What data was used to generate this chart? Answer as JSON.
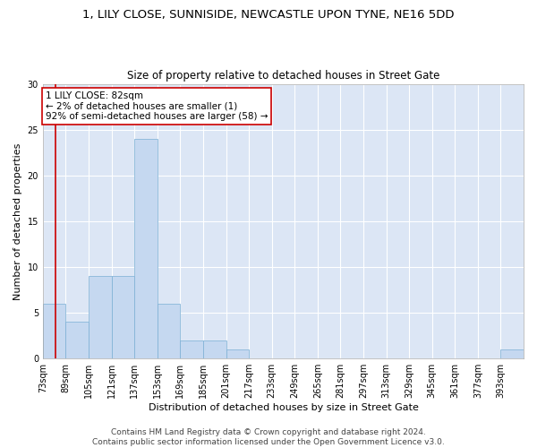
{
  "title": "1, LILY CLOSE, SUNNISIDE, NEWCASTLE UPON TYNE, NE16 5DD",
  "subtitle": "Size of property relative to detached houses in Street Gate",
  "xlabel": "Distribution of detached houses by size in Street Gate",
  "ylabel": "Number of detached properties",
  "bin_labels": [
    "73sqm",
    "89sqm",
    "105sqm",
    "121sqm",
    "137sqm",
    "153sqm",
    "169sqm",
    "185sqm",
    "201sqm",
    "217sqm",
    "233sqm",
    "249sqm",
    "265sqm",
    "281sqm",
    "297sqm",
    "313sqm",
    "329sqm",
    "345sqm",
    "361sqm",
    "377sqm",
    "393sqm"
  ],
  "bin_values": [
    6,
    4,
    9,
    9,
    24,
    6,
    2,
    2,
    1,
    0,
    0,
    0,
    0,
    0,
    0,
    0,
    0,
    0,
    0,
    0,
    1
  ],
  "bin_width": 16,
  "bin_starts": [
    73,
    89,
    105,
    121,
    137,
    153,
    169,
    185,
    201,
    217,
    233,
    249,
    265,
    281,
    297,
    313,
    329,
    345,
    361,
    377,
    393
  ],
  "bar_color": "#c5d8f0",
  "bar_edge_color": "#7bafd4",
  "property_value": 82,
  "property_line_color": "#cc0000",
  "annotation_text": "1 LILY CLOSE: 82sqm\n← 2% of detached houses are smaller (1)\n92% of semi-detached houses are larger (58) →",
  "annotation_box_color": "white",
  "annotation_box_edge_color": "#cc0000",
  "ylim": [
    0,
    30
  ],
  "yticks": [
    0,
    5,
    10,
    15,
    20,
    25,
    30
  ],
  "background_color": "#dce6f5",
  "grid_color": "white",
  "footer_line1": "Contains HM Land Registry data © Crown copyright and database right 2024.",
  "footer_line2": "Contains public sector information licensed under the Open Government Licence v3.0.",
  "title_fontsize": 9.5,
  "subtitle_fontsize": 8.5,
  "axis_label_fontsize": 8,
  "tick_fontsize": 7,
  "annotation_fontsize": 7.5,
  "footer_fontsize": 6.5
}
